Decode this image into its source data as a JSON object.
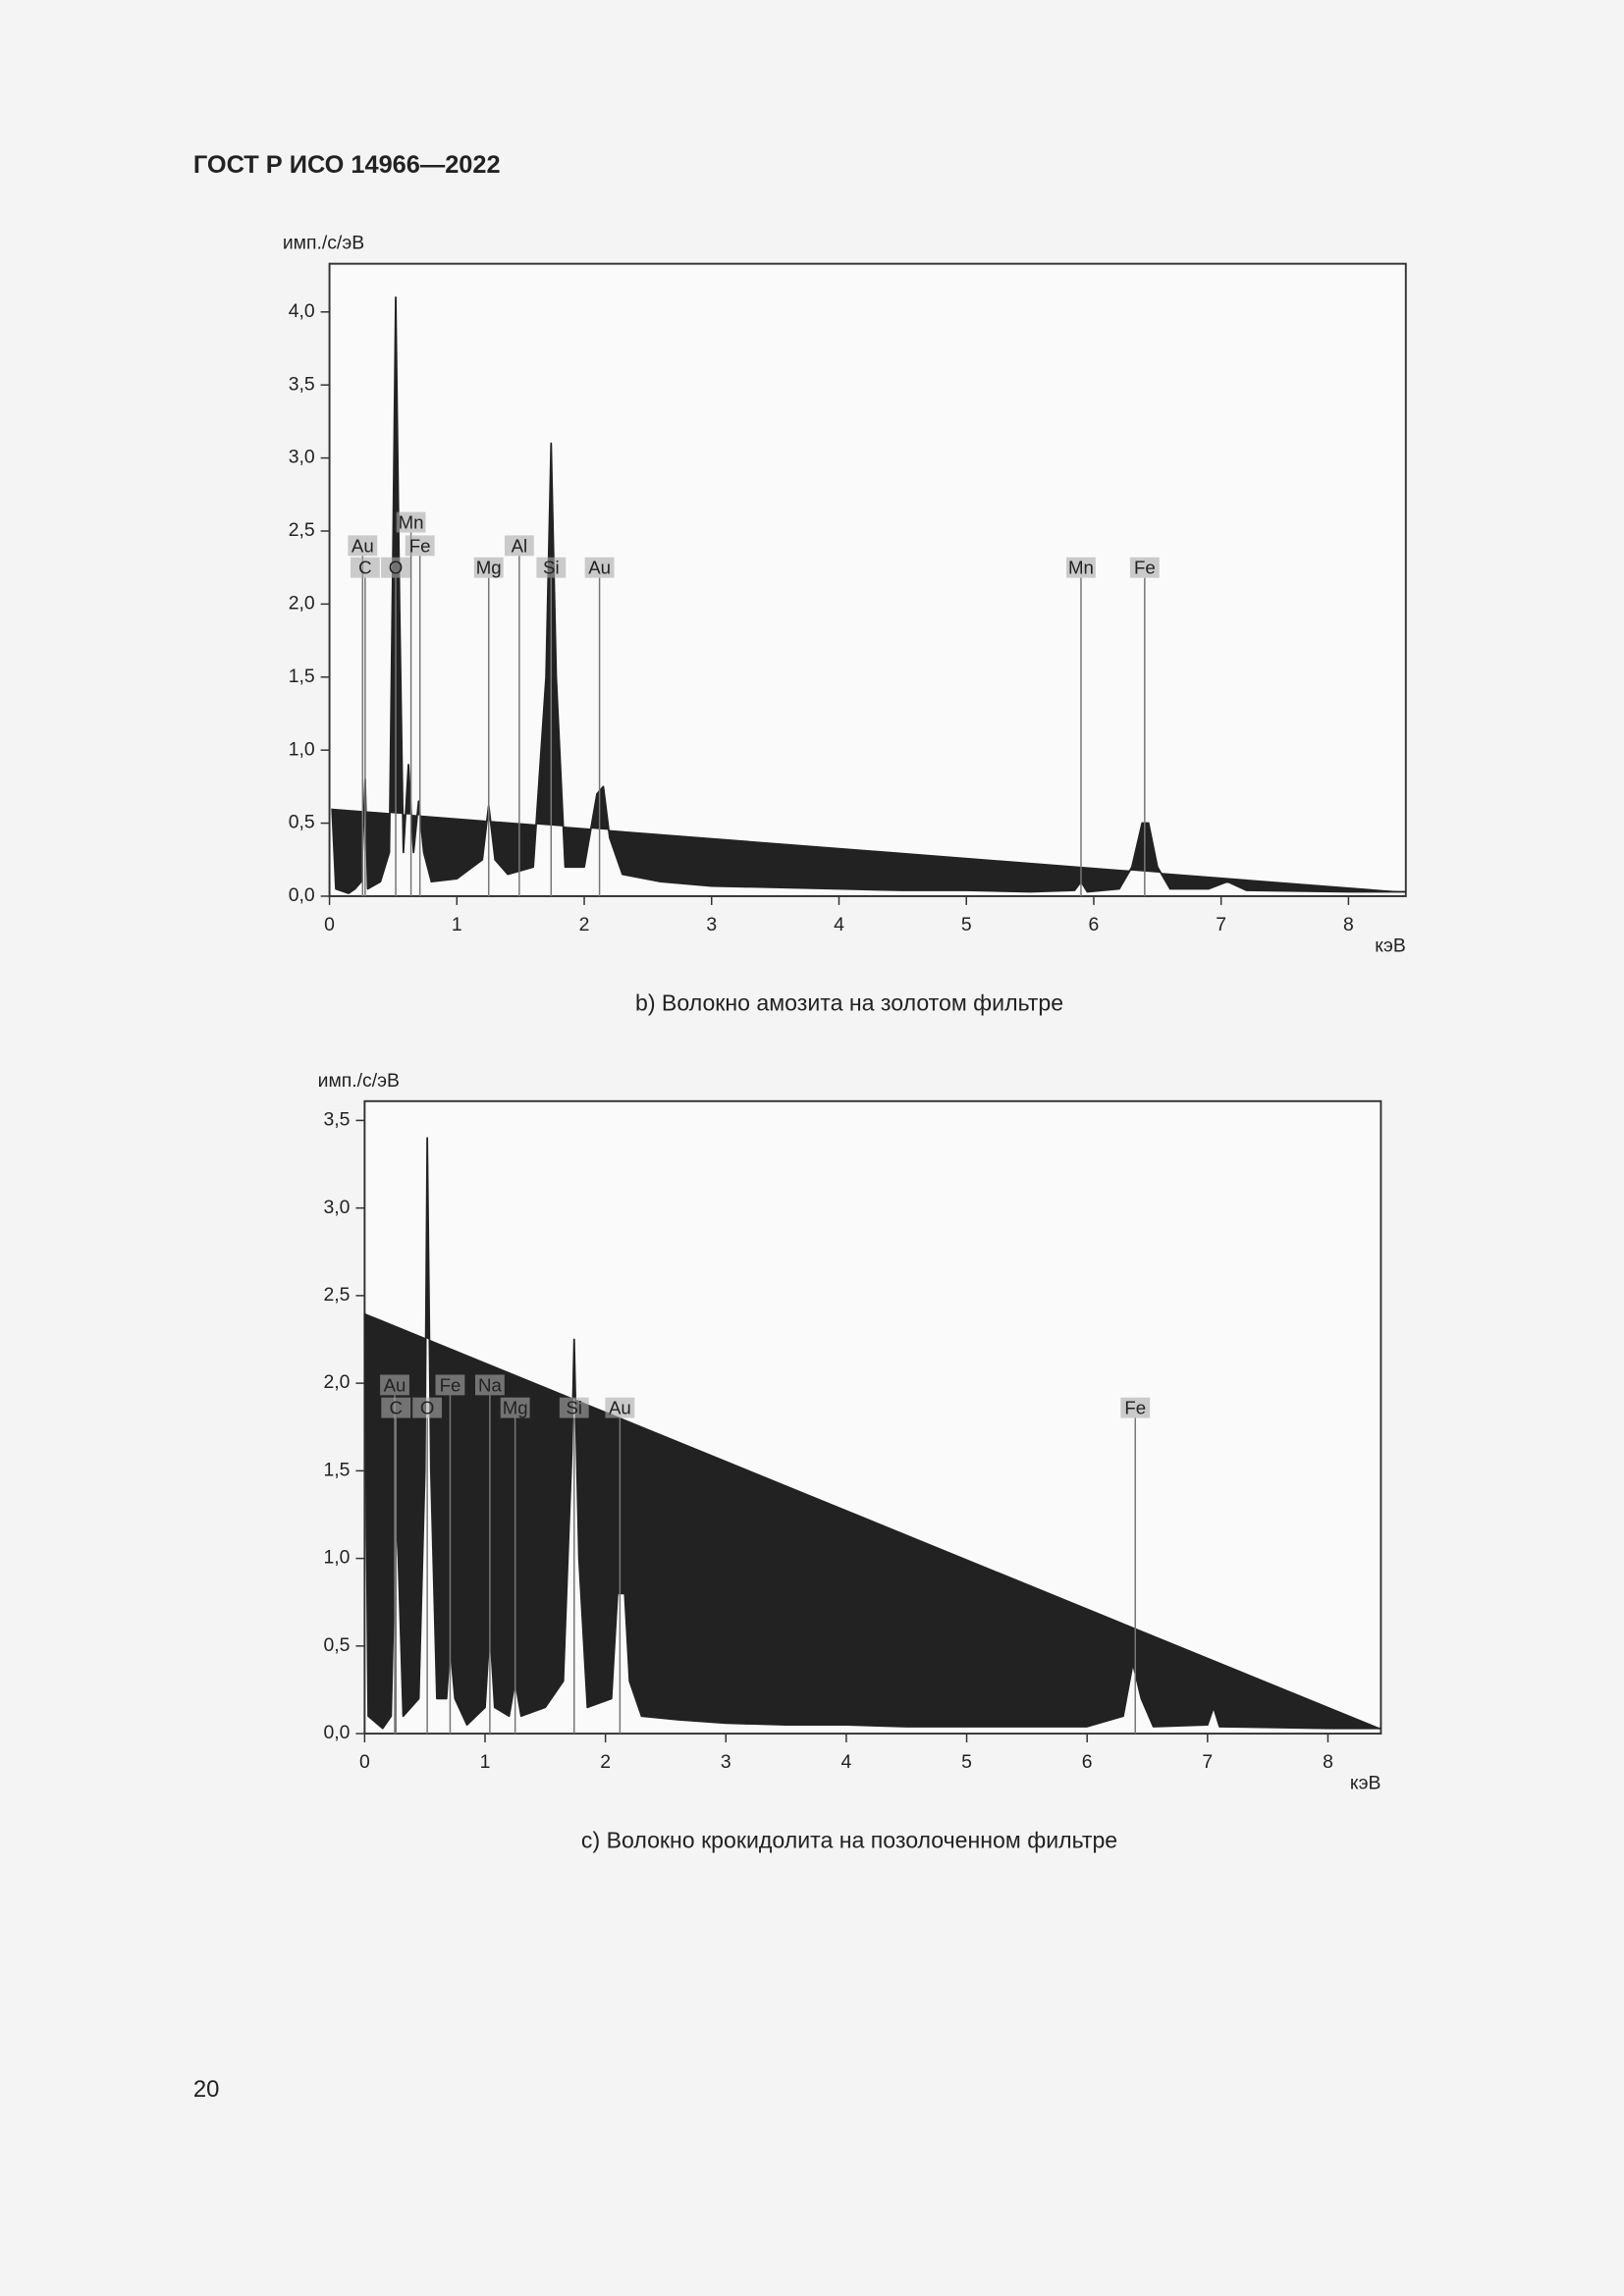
{
  "header": {
    "title": "ГОСТ Р ИСО 14966—2022"
  },
  "page_number": "20",
  "chart_data": [
    {
      "type": "line",
      "caption": "b)  Волокно амозита на золотом фильтре",
      "ylabel": "имп./с/эВ",
      "xlabel": "кэВ",
      "color": "#222222",
      "xlim": [
        0,
        8.45
      ],
      "ylim": [
        0,
        4.33
      ],
      "xticks": [
        0,
        1,
        2,
        3,
        4,
        5,
        6,
        7,
        8
      ],
      "yticks": [
        {
          "value": 0,
          "label": "0,0"
        },
        {
          "value": 0.5,
          "label": "0,5"
        },
        {
          "value": 1,
          "label": "1,0"
        },
        {
          "value": 1.5,
          "label": "1,5"
        },
        {
          "value": 2,
          "label": "2,0"
        },
        {
          "value": 2.5,
          "label": "2,5"
        },
        {
          "value": 3,
          "label": "3,0"
        },
        {
          "value": 3.5,
          "label": "3,5"
        },
        {
          "value": 4,
          "label": "4,0"
        }
      ],
      "x": [
        0.02,
        0.05,
        0.15,
        0.2,
        0.25,
        0.28,
        0.3,
        0.4,
        0.47,
        0.5,
        0.52,
        0.55,
        0.58,
        0.62,
        0.66,
        0.7,
        0.74,
        0.8,
        1.0,
        1.2,
        1.25,
        1.3,
        1.4,
        1.6,
        1.7,
        1.74,
        1.78,
        1.85,
        2.0,
        2.1,
        2.15,
        2.2,
        2.3,
        2.6,
        3,
        3.5,
        4,
        4.5,
        5,
        5.5,
        5.85,
        5.9,
        5.95,
        6.2,
        6.3,
        6.38,
        6.43,
        6.5,
        6.6,
        6.9,
        7.05,
        7.2,
        8,
        8.45
      ],
      "values": [
        0.6,
        0.05,
        0.02,
        0.05,
        0.1,
        0.8,
        0.05,
        0.1,
        0.3,
        2.5,
        4.1,
        2.0,
        0.3,
        0.9,
        0.3,
        0.65,
        0.3,
        0.1,
        0.12,
        0.25,
        0.62,
        0.25,
        0.15,
        0.2,
        1.5,
        3.1,
        1.5,
        0.2,
        0.2,
        0.7,
        0.75,
        0.4,
        0.15,
        0.1,
        0.07,
        0.06,
        0.05,
        0.04,
        0.04,
        0.03,
        0.04,
        0.1,
        0.03,
        0.05,
        0.2,
        0.5,
        0.5,
        0.2,
        0.05,
        0.05,
        0.1,
        0.04,
        0.03,
        0.03
      ],
      "annotations": [
        {
          "text": "Au",
          "x": 0.26,
          "y": 2.4
        },
        {
          "text": "C",
          "x": 0.28,
          "y": 2.25
        },
        {
          "text": "O",
          "x": 0.52,
          "y": 2.25
        },
        {
          "text": "Mn",
          "x": 0.64,
          "y": 2.56
        },
        {
          "text": "Fe",
          "x": 0.71,
          "y": 2.4
        },
        {
          "text": "Mg",
          "x": 1.25,
          "y": 2.25
        },
        {
          "text": "Al",
          "x": 1.49,
          "y": 2.4
        },
        {
          "text": "Si",
          "x": 1.74,
          "y": 2.25
        },
        {
          "text": "Au",
          "x": 2.12,
          "y": 2.25
        },
        {
          "text": "Mn",
          "x": 5.9,
          "y": 2.25
        },
        {
          "text": "Fe",
          "x": 6.4,
          "y": 2.25
        }
      ]
    },
    {
      "type": "line",
      "caption": "c)  Волокно крокидолита на позолоченном фильтре",
      "ylabel": "имп./с/эВ",
      "xlabel": "кэВ",
      "color": "#222222",
      "xlim": [
        0,
        8.44
      ],
      "ylim": [
        0,
        3.61
      ],
      "xticks": [
        0,
        1,
        2,
        3,
        4,
        5,
        6,
        7,
        8
      ],
      "yticks": [
        {
          "value": 0,
          "label": "0,0"
        },
        {
          "value": 0.5,
          "label": "0,5"
        },
        {
          "value": 1,
          "label": "1,0"
        },
        {
          "value": 1.5,
          "label": "1,5"
        },
        {
          "value": 2,
          "label": "2,0"
        },
        {
          "value": 2.5,
          "label": "2,5"
        },
        {
          "value": 3,
          "label": "3,0"
        },
        {
          "value": 3.5,
          "label": "3,5"
        }
      ],
      "x": [
        0.0,
        0.03,
        0.15,
        0.22,
        0.26,
        0.28,
        0.32,
        0.45,
        0.5,
        0.52,
        0.55,
        0.6,
        0.68,
        0.71,
        0.75,
        0.85,
        1.0,
        1.04,
        1.08,
        1.2,
        1.25,
        1.3,
        1.5,
        1.65,
        1.72,
        1.74,
        1.78,
        1.85,
        2.05,
        2.1,
        2.16,
        2.2,
        2.3,
        2.6,
        3,
        3.5,
        4,
        4.5,
        5,
        5.5,
        6,
        6.3,
        6.38,
        6.45,
        6.55,
        7.0,
        7.05,
        7.1,
        8,
        8.44
      ],
      "values": [
        2.4,
        0.1,
        0.03,
        0.1,
        1.3,
        1.0,
        0.1,
        0.2,
        1.5,
        3.4,
        1.5,
        0.2,
        0.2,
        0.5,
        0.2,
        0.05,
        0.15,
        0.6,
        0.15,
        0.1,
        0.3,
        0.1,
        0.15,
        0.3,
        1.6,
        2.25,
        1.0,
        0.15,
        0.2,
        0.8,
        0.8,
        0.3,
        0.1,
        0.08,
        0.06,
        0.05,
        0.05,
        0.04,
        0.04,
        0.04,
        0.04,
        0.1,
        0.4,
        0.2,
        0.04,
        0.05,
        0.15,
        0.04,
        0.03,
        0.03
      ],
      "annotations": [
        {
          "text": "Au",
          "x": 0.25,
          "y": 1.99
        },
        {
          "text": "C",
          "x": 0.26,
          "y": 1.86
        },
        {
          "text": "O",
          "x": 0.52,
          "y": 1.86
        },
        {
          "text": "Fe",
          "x": 0.71,
          "y": 1.99
        },
        {
          "text": "Na",
          "x": 1.04,
          "y": 1.99
        },
        {
          "text": "Mg",
          "x": 1.25,
          "y": 1.86
        },
        {
          "text": "Si",
          "x": 1.74,
          "y": 1.86
        },
        {
          "text": "Au",
          "x": 2.12,
          "y": 1.86
        },
        {
          "text": "Fe",
          "x": 6.4,
          "y": 1.86
        }
      ]
    }
  ]
}
